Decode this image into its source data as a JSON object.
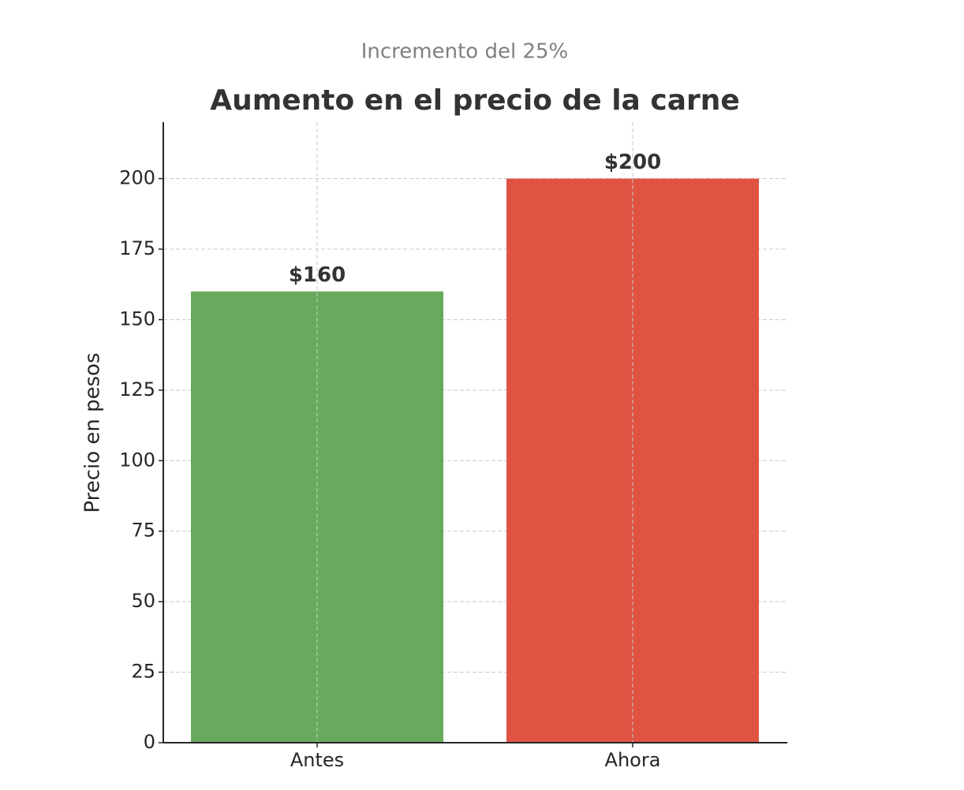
{
  "chart_data": {
    "type": "bar",
    "subtitle": "Incremento del 25%",
    "title": "Aumento en el precio de la carne",
    "y_label": "Precio en pesos",
    "categories": [
      "Antes",
      "Ahora"
    ],
    "values": [
      160,
      200
    ],
    "value_labels": [
      "$160",
      "$200"
    ],
    "colors": [
      "#67aa5d",
      "#e05343"
    ],
    "ylim": [
      0,
      220
    ],
    "yticks": [
      0,
      25,
      50,
      75,
      100,
      125,
      150,
      175,
      200
    ],
    "grid": true
  }
}
